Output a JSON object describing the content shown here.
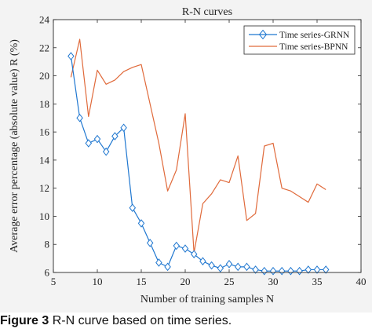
{
  "chart_data": {
    "type": "line",
    "title": "R-N curves",
    "xlabel": "Number of training samples  N",
    "ylabel": "Average error percentage (absolute value) R   (%)",
    "xlim": [
      5,
      40
    ],
    "ylim": [
      6,
      24
    ],
    "xticks": [
      5,
      10,
      15,
      20,
      25,
      30,
      35,
      40
    ],
    "yticks": [
      6,
      8,
      10,
      12,
      14,
      16,
      18,
      20,
      22,
      24
    ],
    "grid": false,
    "legend_position": "top-right",
    "series": [
      {
        "name": "Time series-GRNN",
        "color": "#1f77d0",
        "marker": "diamond",
        "x": [
          7,
          8,
          9,
          10,
          11,
          12,
          13,
          14,
          15,
          16,
          17,
          18,
          19,
          20,
          21,
          22,
          23,
          24,
          25,
          26,
          27,
          28,
          29,
          30,
          31,
          32,
          33,
          34,
          35,
          36
        ],
        "y": [
          21.4,
          17.0,
          15.2,
          15.5,
          14.6,
          15.7,
          16.3,
          10.6,
          9.5,
          8.1,
          6.7,
          6.4,
          7.9,
          7.7,
          7.3,
          6.8,
          6.5,
          6.3,
          6.6,
          6.4,
          6.4,
          6.2,
          6.1,
          6.1,
          6.1,
          6.1,
          6.1,
          6.2,
          6.2,
          6.2
        ]
      },
      {
        "name": "Time series-BPNN",
        "color": "#e06a3b",
        "marker": "none",
        "x": [
          7,
          8,
          9,
          10,
          11,
          12,
          13,
          14,
          15,
          16,
          17,
          18,
          19,
          20,
          21,
          22,
          23,
          24,
          25,
          26,
          27,
          28,
          29,
          30,
          31,
          32,
          33,
          34,
          35,
          36
        ],
        "y": [
          19.9,
          22.6,
          17.1,
          20.4,
          19.4,
          19.7,
          20.3,
          20.6,
          20.8,
          18.0,
          15.2,
          11.8,
          13.3,
          17.3,
          7.4,
          10.9,
          11.6,
          12.6,
          12.4,
          14.3,
          9.7,
          10.2,
          15.0,
          15.2,
          12.0,
          11.8,
          11.4,
          11.0,
          12.3,
          11.9
        ]
      }
    ]
  },
  "caption": {
    "label": "Figure 3",
    "text": "R-N curve based on time series."
  }
}
